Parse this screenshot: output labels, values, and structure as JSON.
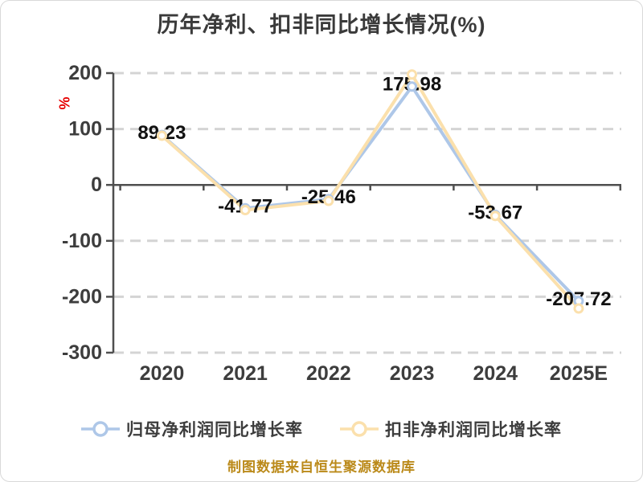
{
  "title": "历年净利、扣非同比增长情况(%)",
  "y_axis": {
    "unit_label": "%",
    "ticks": [
      200,
      100,
      0,
      -100,
      -200,
      -300
    ],
    "min": -300,
    "max": 200
  },
  "chart_data": {
    "type": "line",
    "title": "历年净利、扣非同比增长情况(%)",
    "categories": [
      "2020",
      "2021",
      "2022",
      "2023",
      "2024",
      "2025E"
    ],
    "series": [
      {
        "name": "归母净利润同比增长率",
        "color": "#aec7e8",
        "values": [
          89.23,
          -41.77,
          -25.46,
          175.98,
          -53.67,
          -207.72
        ]
      },
      {
        "name": "扣非净利润同比增长率",
        "color": "#fbe0ac",
        "values": [
          88.0,
          -45.0,
          -28.5,
          197.5,
          -55.5,
          -221.0
        ]
      }
    ],
    "point_labels": [
      "89.23",
      "-41.77",
      "-25.46",
      "175.98",
      "-53.67",
      "-207.72"
    ],
    "xlabel": "",
    "ylabel": "%",
    "ylim": [
      -300,
      200
    ],
    "grid": "horizontal-dashed, solid zero line",
    "legend_position": "bottom",
    "marker": "open-circle"
  },
  "legend": {
    "items": [
      {
        "label": "归母净利润同比增长率",
        "color": "#aec7e8"
      },
      {
        "label": "扣非净利润同比增长率",
        "color": "#fbe0ac"
      }
    ]
  },
  "footer": {
    "source_note": "制图数据来自恒生聚源数据库"
  },
  "colors": {
    "title_text": "#3a3a3a",
    "axis_line": "#4f4f4f",
    "axis_label": "#3d3d3d",
    "gridline_dashed": "#d4d4d4",
    "data_label": "#111111",
    "unit_label_red": "#e60000",
    "footer_text": "#bb8a1a",
    "marker_fill": "#ffffff"
  }
}
